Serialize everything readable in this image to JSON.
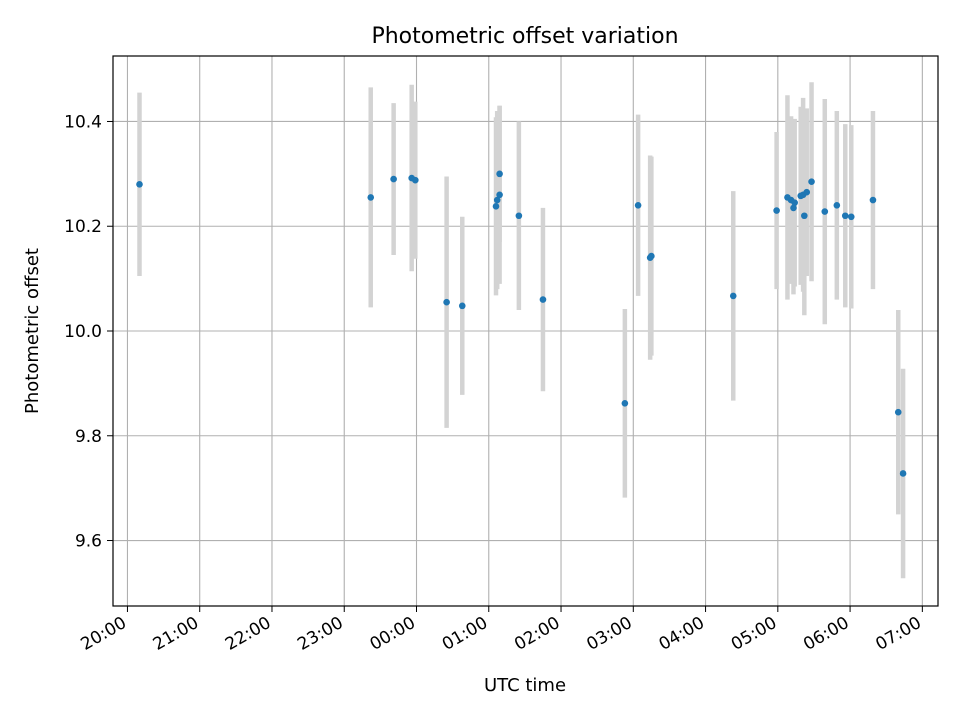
{
  "chart_data": {
    "type": "scatter",
    "title": "Photometric offset variation",
    "xlabel": "UTC time",
    "ylabel": "Photometric offset",
    "x_ticks": [
      "20:00",
      "21:00",
      "22:00",
      "23:00",
      "00:00",
      "01:00",
      "02:00",
      "03:00",
      "04:00",
      "05:00",
      "06:00",
      "07:00"
    ],
    "y_ticks": [
      "9.6",
      "9.8",
      "10.0",
      "10.2",
      "10.4"
    ],
    "xlim": [
      "19:48",
      "07:13"
    ],
    "ylim": [
      9.475,
      10.525
    ],
    "grid": true,
    "marker_color": "#1f77b4",
    "errorbar_color": "#d3d3d3",
    "series": [
      {
        "points": [
          {
            "x": "20:10",
            "y": 10.28,
            "err": 0.175
          },
          {
            "x": "23:22",
            "y": 10.255,
            "err": 0.21
          },
          {
            "x": "23:41",
            "y": 10.29,
            "err": 0.145
          },
          {
            "x": "23:56",
            "y": 10.292,
            "err": 0.178
          },
          {
            "x": "23:59",
            "y": 10.288,
            "err": 0.15
          },
          {
            "x": "00:25",
            "y": 10.055,
            "err": 0.24
          },
          {
            "x": "00:38",
            "y": 10.048,
            "err": 0.17
          },
          {
            "x": "01:06",
            "y": 10.238,
            "err": 0.17
          },
          {
            "x": "01:07",
            "y": 10.25,
            "err": 0.17
          },
          {
            "x": "01:09",
            "y": 10.3,
            "err": 0.13
          },
          {
            "x": "01:09",
            "y": 10.26,
            "err": 0.17
          },
          {
            "x": "01:25",
            "y": 10.22,
            "err": 0.18
          },
          {
            "x": "01:45",
            "y": 10.06,
            "err": 0.175
          },
          {
            "x": "02:53",
            "y": 9.862,
            "err": 0.18
          },
          {
            "x": "03:04",
            "y": 10.24,
            "err": 0.173
          },
          {
            "x": "03:14",
            "y": 10.14,
            "err": 0.195
          },
          {
            "x": "03:15",
            "y": 10.143,
            "err": 0.19
          },
          {
            "x": "04:23",
            "y": 10.067,
            "err": 0.2
          },
          {
            "x": "04:59",
            "y": 10.23,
            "err": 0.15
          },
          {
            "x": "05:08",
            "y": 10.255,
            "err": 0.195
          },
          {
            "x": "05:11",
            "y": 10.25,
            "err": 0.16
          },
          {
            "x": "05:13",
            "y": 10.235,
            "err": 0.165
          },
          {
            "x": "05:14",
            "y": 10.245,
            "err": 0.16
          },
          {
            "x": "05:19",
            "y": 10.258,
            "err": 0.17
          },
          {
            "x": "05:21",
            "y": 10.26,
            "err": 0.185
          },
          {
            "x": "05:22",
            "y": 10.22,
            "err": 0.19
          },
          {
            "x": "05:24",
            "y": 10.265,
            "err": 0.16
          },
          {
            "x": "05:28",
            "y": 10.285,
            "err": 0.19
          },
          {
            "x": "05:39",
            "y": 10.228,
            "err": 0.215
          },
          {
            "x": "05:49",
            "y": 10.24,
            "err": 0.18
          },
          {
            "x": "05:56",
            "y": 10.22,
            "err": 0.175
          },
          {
            "x": "06:01",
            "y": 10.218,
            "err": 0.175
          },
          {
            "x": "06:19",
            "y": 10.25,
            "err": 0.17
          },
          {
            "x": "06:40",
            "y": 9.845,
            "err": 0.195
          },
          {
            "x": "06:44",
            "y": 9.728,
            "err": 0.2
          }
        ]
      }
    ]
  }
}
